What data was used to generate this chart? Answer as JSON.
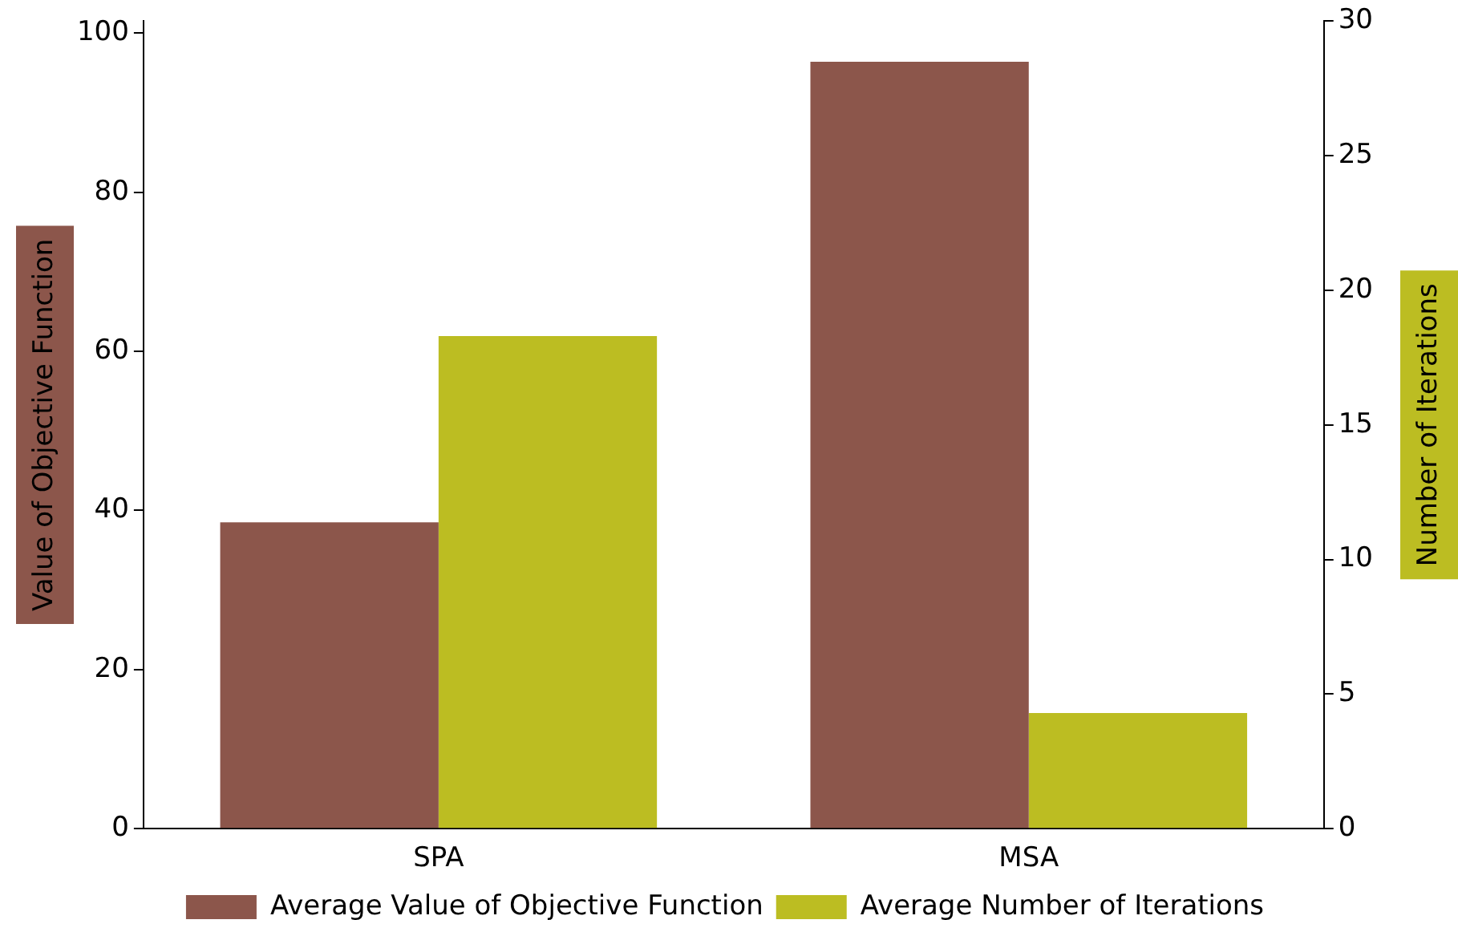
{
  "chart_data": {
    "type": "bar",
    "categories": [
      "SPA",
      "MSA"
    ],
    "ylabel": "Value of Objective Function",
    "y2label": "Number of Iterations",
    "series": [
      {
        "name": "Average Value of Objective Function",
        "color": "#8c564b",
        "values": [
          38.5,
          96.4
        ]
      },
      {
        "name": "Average Number of Iterations",
        "color": "#bcbd22",
        "values": [
          18.3,
          4.3
        ],
        "axis": "y2"
      }
    ],
    "ylim": [
      0,
      101.5
    ],
    "yticks": [
      0,
      20,
      40,
      60,
      80,
      100
    ],
    "y2lim": [
      0,
      30
    ],
    "y2ticks": [
      0,
      5,
      10,
      15,
      20,
      25,
      30
    ],
    "grid": false,
    "legend": "bottom"
  }
}
